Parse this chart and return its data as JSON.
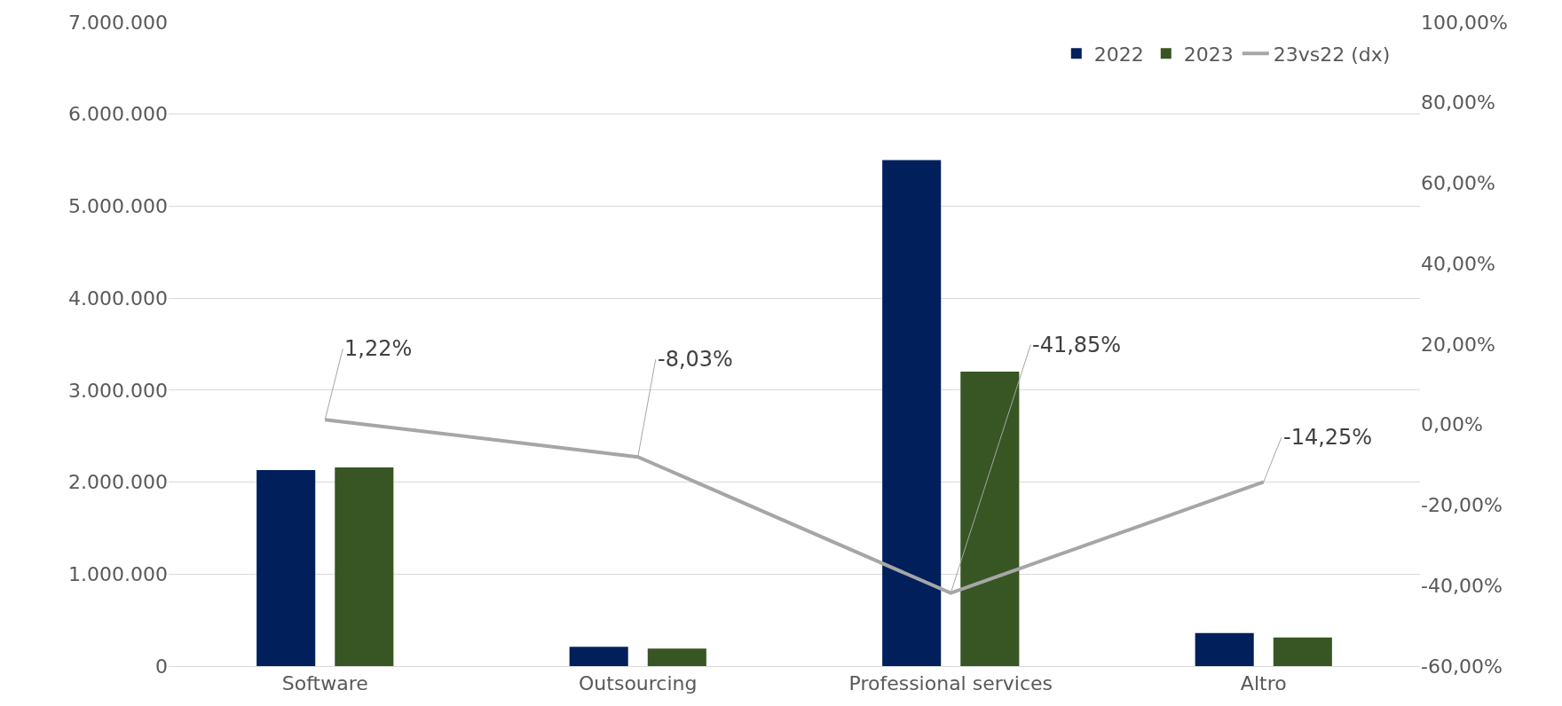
{
  "chart_data": {
    "type": "bar",
    "categories": [
      "Software",
      "Outsourcing",
      "Professional services",
      "Altro"
    ],
    "series": [
      {
        "name": "2022",
        "color": "#001f5b",
        "values": [
          2130000,
          210000,
          5500000,
          360000
        ]
      },
      {
        "name": "2023",
        "color": "#375623",
        "values": [
          2160000,
          190000,
          3200000,
          310000
        ]
      },
      {
        "name": "23vs22 (dx)",
        "type": "line",
        "axis": "y2",
        "color": "#a6a6a6",
        "values": [
          1.22,
          -8.03,
          -41.85,
          -14.25
        ],
        "value_labels": [
          "1,22%",
          "-8,03%",
          "-41,85%",
          "-14,25%"
        ],
        "marker": "none",
        "line_style": "solid"
      }
    ],
    "ylim": [
      0,
      7000000
    ],
    "yticks": [
      {
        "value": 0,
        "label": "0"
      },
      {
        "value": 1000000,
        "label": "1.000.000"
      },
      {
        "value": 2000000,
        "label": "2.000.000"
      },
      {
        "value": 3000000,
        "label": "3.000.000"
      },
      {
        "value": 4000000,
        "label": "4.000.000"
      },
      {
        "value": 5000000,
        "label": "5.000.000"
      },
      {
        "value": 6000000,
        "label": "6.000.000"
      },
      {
        "value": 7000000,
        "label": "7.000.000"
      }
    ],
    "y2lim": [
      -60,
      100
    ],
    "y2ticks": [
      {
        "value": -60,
        "label": "-60,00%"
      },
      {
        "value": -40,
        "label": "-40,00%"
      },
      {
        "value": -20,
        "label": "-20,00%"
      },
      {
        "value": 0,
        "label": "0,00%"
      },
      {
        "value": 20,
        "label": "20,00%"
      },
      {
        "value": 40,
        "label": "40,00%"
      },
      {
        "value": 60,
        "label": "60,00%"
      },
      {
        "value": 80,
        "label": "80,00%"
      },
      {
        "value": 100,
        "label": "100,00%"
      }
    ],
    "grid": "y",
    "legend": "top right"
  }
}
